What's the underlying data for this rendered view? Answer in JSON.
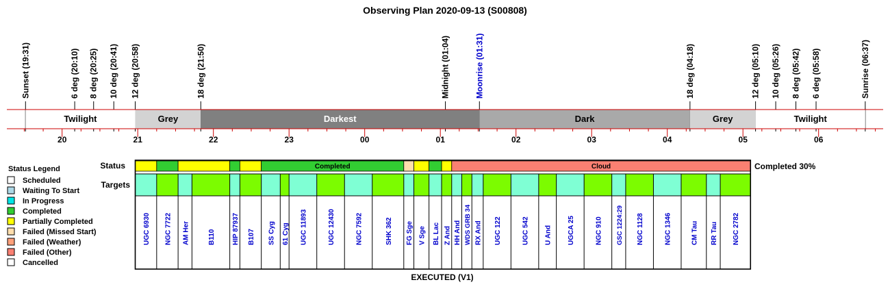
{
  "chart_data": {
    "type": "timeline",
    "title": "Observing Plan 2020-09-13 (S00808)",
    "axis": {
      "start_time": "19:15",
      "end_time": "06:45",
      "hour_labels": [
        "20",
        "21",
        "22",
        "23",
        "00",
        "01",
        "02",
        "03",
        "04",
        "05",
        "06"
      ]
    },
    "events": [
      {
        "label": "Sunset (19:31)",
        "time": "19:31",
        "color": "#000000"
      },
      {
        "label": "6 deg (20:10)",
        "time": "20:10",
        "color": "#000000"
      },
      {
        "label": "8 deg (20:25)",
        "time": "20:25",
        "color": "#000000"
      },
      {
        "label": "10 deg (20:41)",
        "time": "20:41",
        "color": "#000000"
      },
      {
        "label": "12 deg (20:58)",
        "time": "20:58",
        "color": "#000000"
      },
      {
        "label": "18 deg (21:50)",
        "time": "21:50",
        "color": "#000000"
      },
      {
        "label": "Midnight (01:04)",
        "time": "01:04",
        "color": "#000000"
      },
      {
        "label": "Moonrise (01:31)",
        "time": "01:31",
        "color": "#0000cc"
      },
      {
        "label": "18 deg (04:18)",
        "time": "04:18",
        "color": "#000000"
      },
      {
        "label": "12 deg (05:10)",
        "time": "05:10",
        "color": "#000000"
      },
      {
        "label": "10 deg (05:26)",
        "time": "05:26",
        "color": "#000000"
      },
      {
        "label": "8 deg (05:42)",
        "time": "05:42",
        "color": "#000000"
      },
      {
        "label": "6 deg (05:58)",
        "time": "05:58",
        "color": "#000000"
      },
      {
        "label": "Sunrise (06:37)",
        "time": "06:37",
        "color": "#000000"
      }
    ],
    "sky_bands": [
      {
        "label": "Twilight",
        "start": "19:31",
        "end": "20:58",
        "color": "#ffffff",
        "text_color": "#000000"
      },
      {
        "label": "Grey",
        "start": "20:58",
        "end": "21:50",
        "color": "#d3d3d3",
        "text_color": "#000000"
      },
      {
        "label": "Darkest",
        "start": "21:50",
        "end": "01:31",
        "color": "#808080",
        "text_color": "#ffffff"
      },
      {
        "label": "Dark",
        "start": "01:31",
        "end": "04:18",
        "color": "#a9a9a9",
        "text_color": "#000000"
      },
      {
        "label": "Grey",
        "start": "04:18",
        "end": "05:10",
        "color": "#d3d3d3",
        "text_color": "#000000"
      },
      {
        "label": "Twilight",
        "start": "05:10",
        "end": "06:37",
        "color": "#ffffff",
        "text_color": "#000000"
      }
    ],
    "status_row_label": "Status",
    "targets_row_label": "Targets",
    "status_segments": [
      {
        "status": "Partially Completed",
        "start": "20:58",
        "end": "21:15",
        "label": ""
      },
      {
        "status": "Completed",
        "start": "21:15",
        "end": "21:32",
        "label": ""
      },
      {
        "status": "Partially Completed",
        "start": "21:32",
        "end": "22:13",
        "label": ""
      },
      {
        "status": "Completed",
        "start": "22:13",
        "end": "22:21",
        "label": ""
      },
      {
        "status": "Partially Completed",
        "start": "22:21",
        "end": "22:38",
        "label": ""
      },
      {
        "status": "Completed",
        "start": "22:38",
        "end": "00:31",
        "label": "Completed"
      },
      {
        "status": "Failed (Missed Start)",
        "start": "00:31",
        "end": "00:39",
        "label": ""
      },
      {
        "status": "Partially Completed",
        "start": "00:39",
        "end": "00:51",
        "label": ""
      },
      {
        "status": "Completed",
        "start": "00:51",
        "end": "01:01",
        "label": ""
      },
      {
        "status": "Partially Completed",
        "start": "01:01",
        "end": "01:09",
        "label": ""
      },
      {
        "status": "Failed (Other)",
        "start": "01:09",
        "end": "05:06",
        "label": "Cloud"
      }
    ],
    "targets": [
      {
        "name": "UGC 6930",
        "start": "20:58",
        "end": "21:15",
        "color": "#7fffd4"
      },
      {
        "name": "NGC 7722",
        "start": "21:15",
        "end": "21:32",
        "color": "#7cfc00"
      },
      {
        "name": "AM Her",
        "start": "21:32",
        "end": "21:43",
        "color": "#7fffd4"
      },
      {
        "name": "B110",
        "start": "21:43",
        "end": "22:13",
        "color": "#7cfc00"
      },
      {
        "name": "HIP 87937",
        "start": "22:13",
        "end": "22:21",
        "color": "#7fffd4"
      },
      {
        "name": "B107",
        "start": "22:21",
        "end": "22:38",
        "color": "#7cfc00"
      },
      {
        "name": "SS Cyg",
        "start": "22:38",
        "end": "22:53",
        "color": "#7fffd4"
      },
      {
        "name": "61 Cyg",
        "start": "22:53",
        "end": "23:00",
        "color": "#7cfc00"
      },
      {
        "name": "UGC 11893",
        "start": "23:00",
        "end": "23:22",
        "color": "#7fffd4"
      },
      {
        "name": "UGC 12430",
        "start": "23:22",
        "end": "23:44",
        "color": "#7cfc00"
      },
      {
        "name": "NGC 7592",
        "start": "23:44",
        "end": "00:06",
        "color": "#7fffd4"
      },
      {
        "name": "SHK 362",
        "start": "00:06",
        "end": "00:31",
        "color": "#7cfc00"
      },
      {
        "name": "FG Sge",
        "start": "00:31",
        "end": "00:39",
        "color": "#7fffd4"
      },
      {
        "name": "V Sge",
        "start": "00:39",
        "end": "00:51",
        "color": "#7cfc00"
      },
      {
        "name": "BL Lac",
        "start": "00:51",
        "end": "01:01",
        "color": "#7fffd4"
      },
      {
        "name": "Z And",
        "start": "01:01",
        "end": "01:09",
        "color": "#7cfc00"
      },
      {
        "name": "HH And",
        "start": "01:09",
        "end": "01:17",
        "color": "#7fffd4"
      },
      {
        "name": "WDS GRB 34",
        "start": "01:17",
        "end": "01:25",
        "color": "#7cfc00"
      },
      {
        "name": "RX And",
        "start": "01:25",
        "end": "01:34",
        "color": "#7fffd4"
      },
      {
        "name": "UGC 122",
        "start": "01:34",
        "end": "01:56",
        "color": "#7cfc00"
      },
      {
        "name": "UGC 542",
        "start": "01:56",
        "end": "02:18",
        "color": "#7fffd4"
      },
      {
        "name": "U And",
        "start": "02:18",
        "end": "02:32",
        "color": "#7cfc00"
      },
      {
        "name": "UGCA 25",
        "start": "02:32",
        "end": "02:54",
        "color": "#7fffd4"
      },
      {
        "name": "NGC 910",
        "start": "02:54",
        "end": "03:16",
        "color": "#7cfc00"
      },
      {
        "name": "GSC 1224:29",
        "start": "03:16",
        "end": "03:27",
        "color": "#7fffd4"
      },
      {
        "name": "NGC 1128",
        "start": "03:27",
        "end": "03:49",
        "color": "#7cfc00"
      },
      {
        "name": "NGC 1346",
        "start": "03:49",
        "end": "04:11",
        "color": "#7fffd4"
      },
      {
        "name": "CM Tau",
        "start": "04:11",
        "end": "04:31",
        "color": "#7cfc00"
      },
      {
        "name": "RR Tau",
        "start": "04:31",
        "end": "04:42",
        "color": "#7fffd4"
      },
      {
        "name": "NGC 2782",
        "start": "04:42",
        "end": "05:06",
        "color": "#7cfc00"
      }
    ],
    "completion_text": "Completed 30%",
    "footer": "EXECUTED (V1)",
    "legend": {
      "title": "Status Legend",
      "position": "left",
      "items": [
        {
          "label": "Scheduled",
          "color": "#ffffff"
        },
        {
          "label": "Waiting To Start",
          "color": "#add8e6"
        },
        {
          "label": "In Progress",
          "color": "#00e5e5"
        },
        {
          "label": "Completed",
          "color": "#32cd32"
        },
        {
          "label": "Partially Completed",
          "color": "#ffff00"
        },
        {
          "label": "Failed (Missed Start)",
          "color": "#ffdead"
        },
        {
          "label": "Failed (Weather)",
          "color": "#ffa07a"
        },
        {
          "label": "Failed (Other)",
          "color": "#fa8072"
        },
        {
          "label": "Cancelled",
          "color": "#ffffff"
        }
      ]
    },
    "colors": {
      "axis_line": "#cc0000",
      "target_text": "#0000cc"
    }
  }
}
